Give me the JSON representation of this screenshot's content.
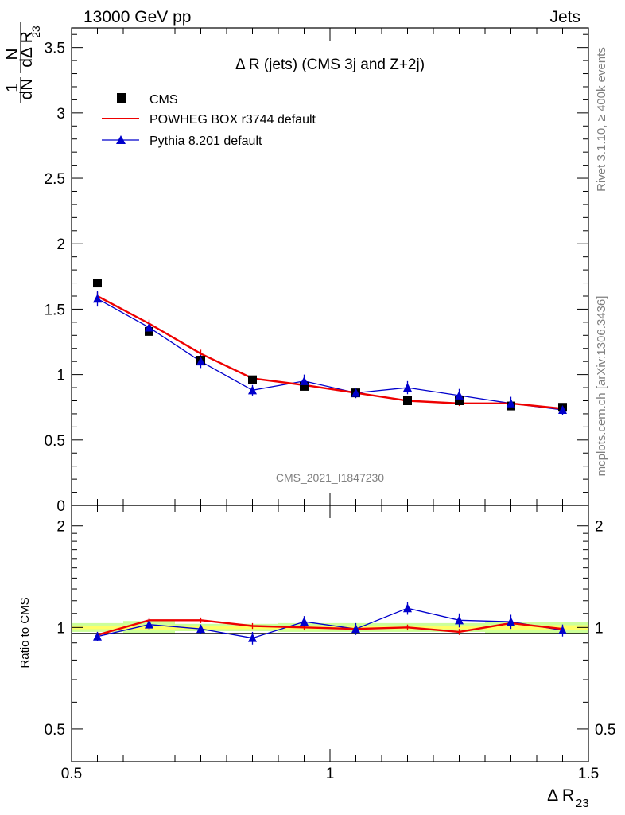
{
  "header": {
    "left": "13000 GeV pp",
    "right": "Jets"
  },
  "side": {
    "rivet": "Rivet 3.1.10, ≥ 400k events",
    "mcplots": "mcplots.cern.ch [arXiv:1306.3436]"
  },
  "colors": {
    "data": "#000000",
    "powheg": "#ee0000",
    "pythia": "#0000cc",
    "band_inner": "#ffff66",
    "band_outer": "#ccff99"
  },
  "chart_data": [
    {
      "type": "scatter",
      "panel": "main",
      "title": "Δ R (jets) (CMS 3j and Z+2j)",
      "watermark": "CMS_2021_I1847230",
      "ylabel": "1/N dN/dΔ R23",
      "ylabel_top": "1",
      "ylabel_num": "dN",
      "ylabel_den_a": "N",
      "ylabel_den_b": "dΔ R",
      "ylabel_sub": "23",
      "xlim": [
        0.5,
        1.5
      ],
      "ylim": [
        0,
        3.65
      ],
      "y_ticks": [
        "0.5",
        "1",
        "1.5",
        "2",
        "2.5",
        "3",
        "3.5"
      ],
      "y_tick_values": [
        0.5,
        1,
        1.5,
        2,
        2.5,
        3,
        3.5
      ],
      "y_zero_label": "0",
      "legend_position": "top-left",
      "series": [
        {
          "name": "CMS",
          "style": "markers",
          "x": [
            0.55,
            0.65,
            0.75,
            0.85,
            0.95,
            1.05,
            1.15,
            1.25,
            1.35,
            1.45
          ],
          "y": [
            1.7,
            1.33,
            1.11,
            0.96,
            0.91,
            0.86,
            0.8,
            0.8,
            0.76,
            0.75
          ],
          "err": [
            0.02,
            0.02,
            0.02,
            0.02,
            0.02,
            0.02,
            0.02,
            0.02,
            0.02,
            0.02
          ]
        },
        {
          "name": "POWHEG BOX r3744 default",
          "style": "line",
          "x": [
            0.55,
            0.65,
            0.75,
            0.85,
            0.95,
            1.05,
            1.15,
            1.25,
            1.35,
            1.45
          ],
          "y": [
            1.6,
            1.39,
            1.16,
            0.97,
            0.92,
            0.86,
            0.8,
            0.78,
            0.78,
            0.74
          ],
          "err": [
            0.03,
            0.03,
            0.03,
            0.02,
            0.02,
            0.02,
            0.02,
            0.02,
            0.02,
            0.02
          ]
        },
        {
          "name": "Pythia 8.201 default",
          "style": "line+triangles",
          "x": [
            0.55,
            0.65,
            0.75,
            0.85,
            0.95,
            1.05,
            1.15,
            1.25,
            1.35,
            1.45
          ],
          "y": [
            1.58,
            1.36,
            1.1,
            0.88,
            0.95,
            0.86,
            0.9,
            0.84,
            0.78,
            0.73
          ],
          "err": [
            0.06,
            0.05,
            0.05,
            0.04,
            0.05,
            0.04,
            0.05,
            0.05,
            0.05,
            0.04
          ]
        }
      ]
    },
    {
      "type": "line",
      "panel": "ratio",
      "ylabel": "Ratio to CMS",
      "xlabel": "Δ R23",
      "xlabel_main": "Δ R",
      "xlabel_sub": "23",
      "xlim": [
        0.5,
        1.5
      ],
      "ylim": [
        0.4,
        2.3
      ],
      "y_ticks": [
        "0.5",
        "1",
        "2"
      ],
      "y_tick_values": [
        0.5,
        1,
        2
      ],
      "x_ticks": [
        "0.5",
        "1",
        "1.5"
      ],
      "x_tick_values": [
        0.5,
        1,
        1.5
      ],
      "band": [
        {
          "x0": 0.5,
          "x1": 0.6,
          "inner": 0.012,
          "outer": 0.03
        },
        {
          "x0": 0.6,
          "x1": 0.7,
          "inner": 0.015,
          "outer": 0.045
        },
        {
          "x0": 0.7,
          "x1": 0.8,
          "inner": 0.012,
          "outer": 0.025
        },
        {
          "x0": 0.8,
          "x1": 0.9,
          "inner": 0.012,
          "outer": 0.025
        },
        {
          "x0": 0.9,
          "x1": 1.0,
          "inner": 0.012,
          "outer": 0.03
        },
        {
          "x0": 1.0,
          "x1": 1.1,
          "inner": 0.012,
          "outer": 0.03
        },
        {
          "x0": 1.1,
          "x1": 1.2,
          "inner": 0.012,
          "outer": 0.03
        },
        {
          "x0": 1.2,
          "x1": 1.3,
          "inner": 0.012,
          "outer": 0.03
        },
        {
          "x0": 1.3,
          "x1": 1.4,
          "inner": 0.015,
          "outer": 0.04
        },
        {
          "x0": 1.4,
          "x1": 1.5,
          "inner": 0.015,
          "outer": 0.04
        }
      ],
      "series": [
        {
          "name": "POWHEG BOX r3744 default",
          "x": [
            0.55,
            0.65,
            0.75,
            0.85,
            0.95,
            1.05,
            1.15,
            1.25,
            1.35,
            1.45
          ],
          "y": [
            0.95,
            1.05,
            1.05,
            1.01,
            1.0,
            0.99,
            1.0,
            0.97,
            1.03,
            0.99
          ],
          "err": [
            0.02,
            0.02,
            0.02,
            0.02,
            0.02,
            0.02,
            0.02,
            0.02,
            0.02,
            0.02
          ]
        },
        {
          "name": "Pythia 8.201 default",
          "x": [
            0.55,
            0.65,
            0.75,
            0.85,
            0.95,
            1.05,
            1.15,
            1.25,
            1.35,
            1.45
          ],
          "y": [
            0.94,
            1.02,
            0.99,
            0.93,
            1.04,
            0.99,
            1.14,
            1.05,
            1.04,
            0.98
          ],
          "err": [
            0.03,
            0.04,
            0.03,
            0.04,
            0.04,
            0.04,
            0.05,
            0.05,
            0.05,
            0.04
          ]
        }
      ]
    }
  ]
}
